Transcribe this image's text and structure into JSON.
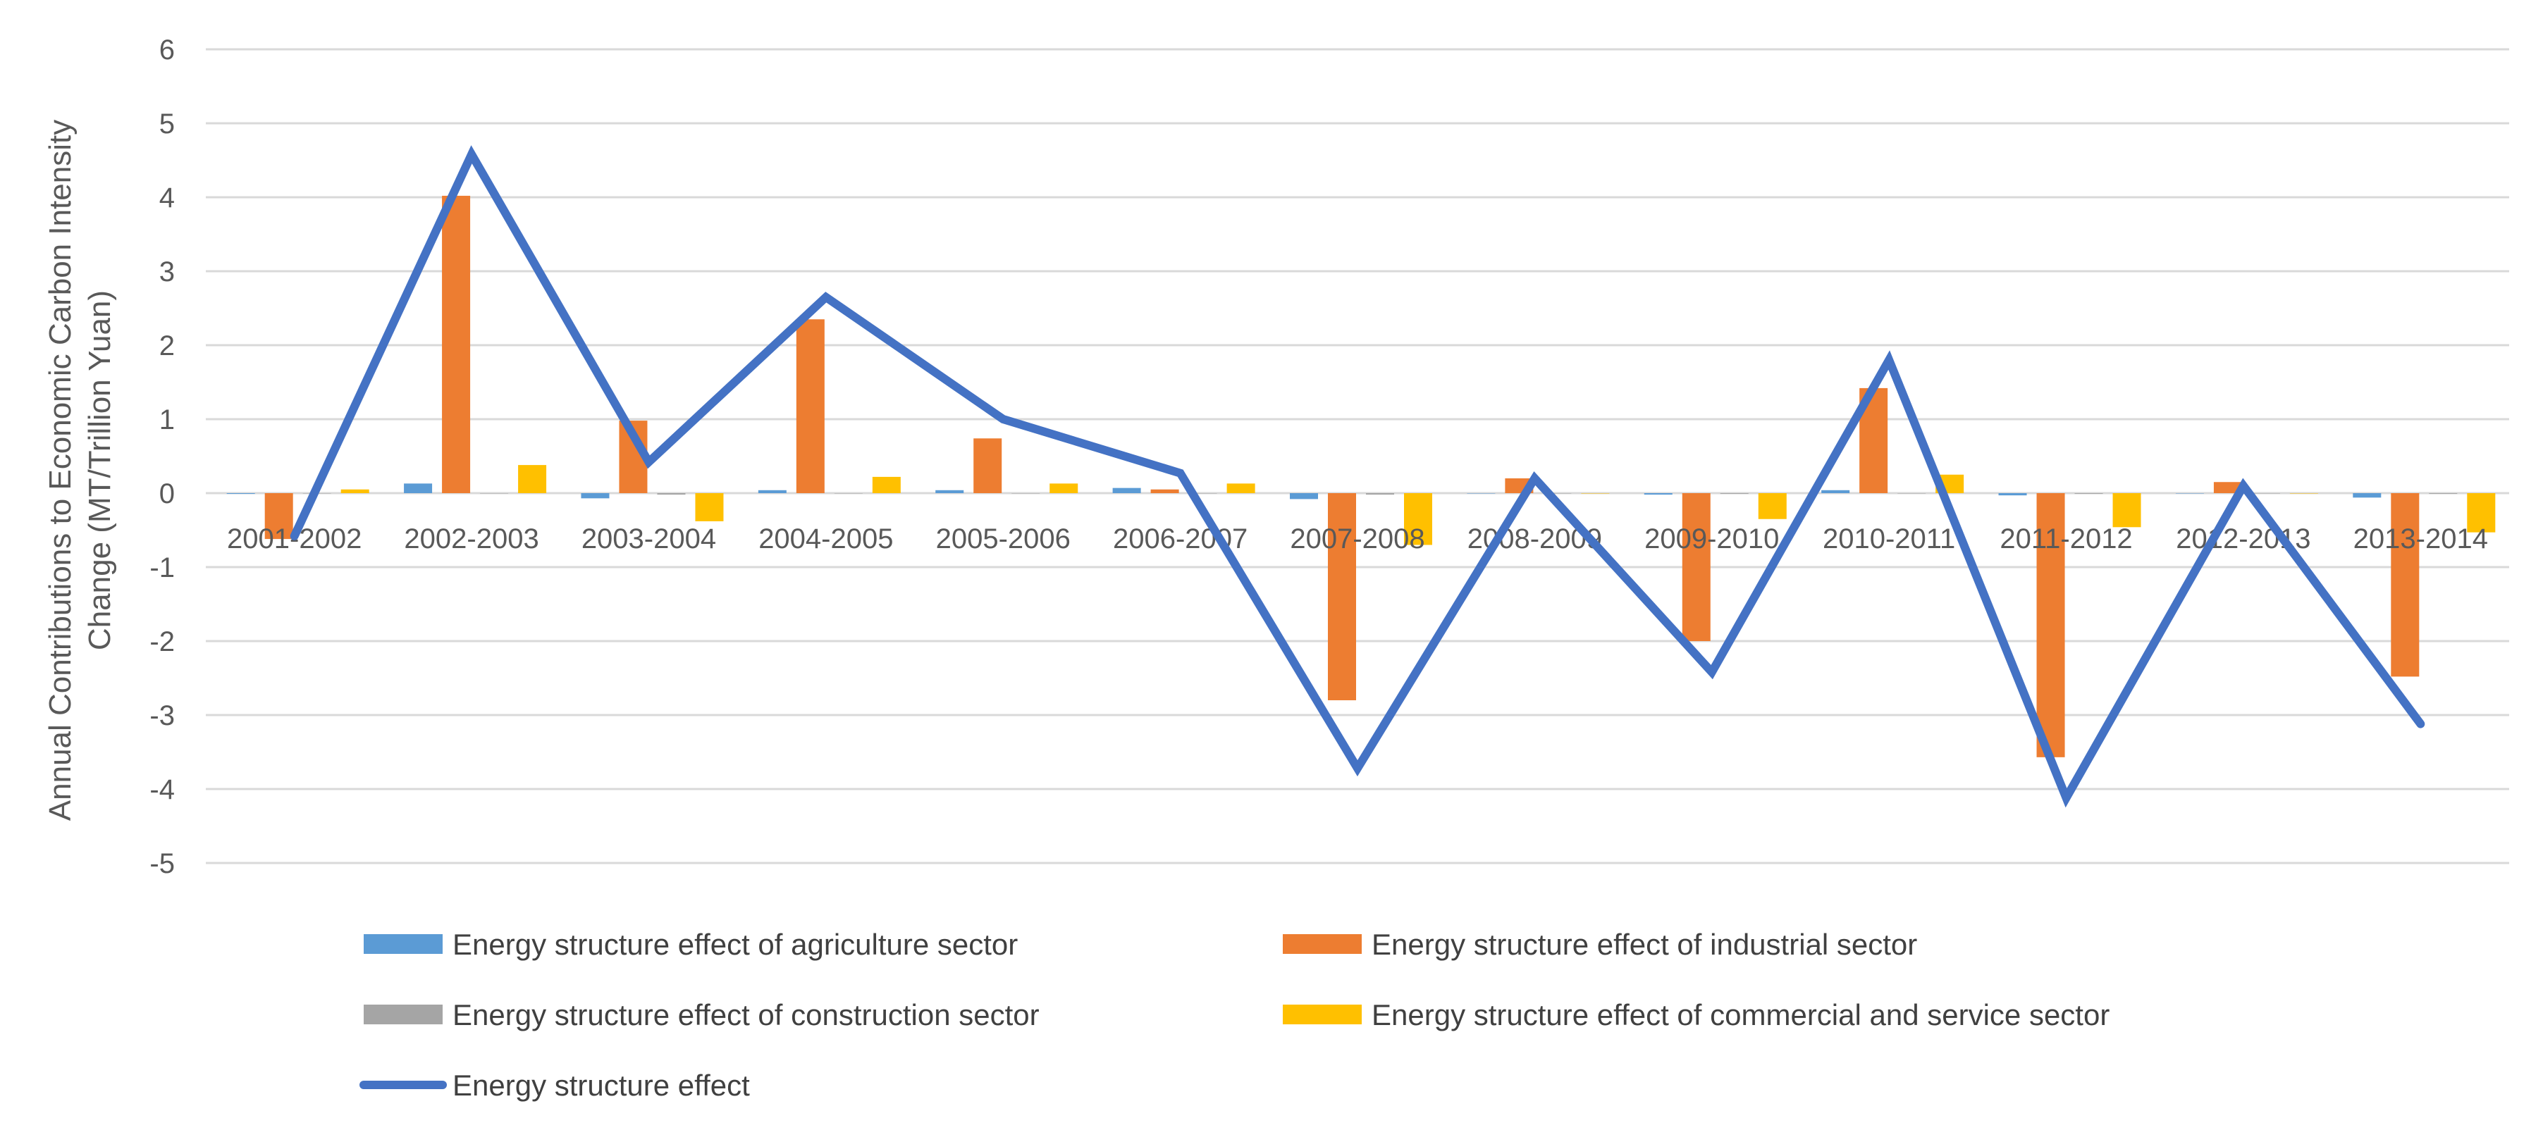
{
  "chart_data": {
    "type": "bar",
    "title": "",
    "xlabel": "",
    "ylabel_lines": [
      "Annual Contributions  to Economic Carbon Intensity",
      "Change (MT/Trillion Yuan)"
    ],
    "ylim": [
      -5,
      6
    ],
    "yticks": [
      6,
      5,
      4,
      3,
      2,
      1,
      0,
      -1,
      -2,
      -3,
      -4,
      -5
    ],
    "grid": true,
    "legend_position": "bottom",
    "categories": [
      "2001-2002",
      "2002-2003",
      "2003-2004",
      "2004-2005",
      "2005-2006",
      "2006-2007",
      "2007-2008",
      "2008-2009",
      "2009-2010",
      "2010-2011",
      "2011-2012",
      "2012-2013",
      "2013-2014"
    ],
    "series": [
      {
        "name": "Energy structure effect of agriculture sector",
        "kind": "bar",
        "color": "#5B9BD5",
        "values": [
          -0.01,
          0.13,
          -0.07,
          0.04,
          0.04,
          0.07,
          -0.08,
          0.0,
          -0.02,
          0.04,
          -0.03,
          0.0,
          -0.06
        ]
      },
      {
        "name": "Energy structure effect of industrial sector",
        "kind": "bar",
        "color": "#ED7D31",
        "values": [
          -0.62,
          4.02,
          0.98,
          2.35,
          0.74,
          0.05,
          -2.8,
          0.2,
          -2.0,
          1.42,
          -3.57,
          0.15,
          -2.48
        ]
      },
      {
        "name": "Energy structure effect of construction sector",
        "kind": "bar",
        "color": "#A5A5A5",
        "values": [
          0.0,
          0.0,
          -0.02,
          0.0,
          0.0,
          0.0,
          -0.02,
          0.0,
          -0.01,
          0.0,
          -0.01,
          0.0,
          -0.01
        ]
      },
      {
        "name": "Energy structure effect of commercial and service sector",
        "kind": "bar",
        "color": "#FFC000",
        "values": [
          0.05,
          0.38,
          -0.38,
          0.22,
          0.13,
          0.13,
          -0.7,
          0.0,
          -0.35,
          0.25,
          -0.46,
          0.0,
          -0.53
        ]
      },
      {
        "name": "Energy structure effect",
        "kind": "line",
        "color": "#4472C4",
        "values": [
          -0.58,
          4.58,
          0.42,
          2.65,
          1.0,
          0.27,
          -3.72,
          0.2,
          -2.42,
          1.8,
          -4.12,
          0.1,
          -3.12
        ]
      }
    ]
  }
}
